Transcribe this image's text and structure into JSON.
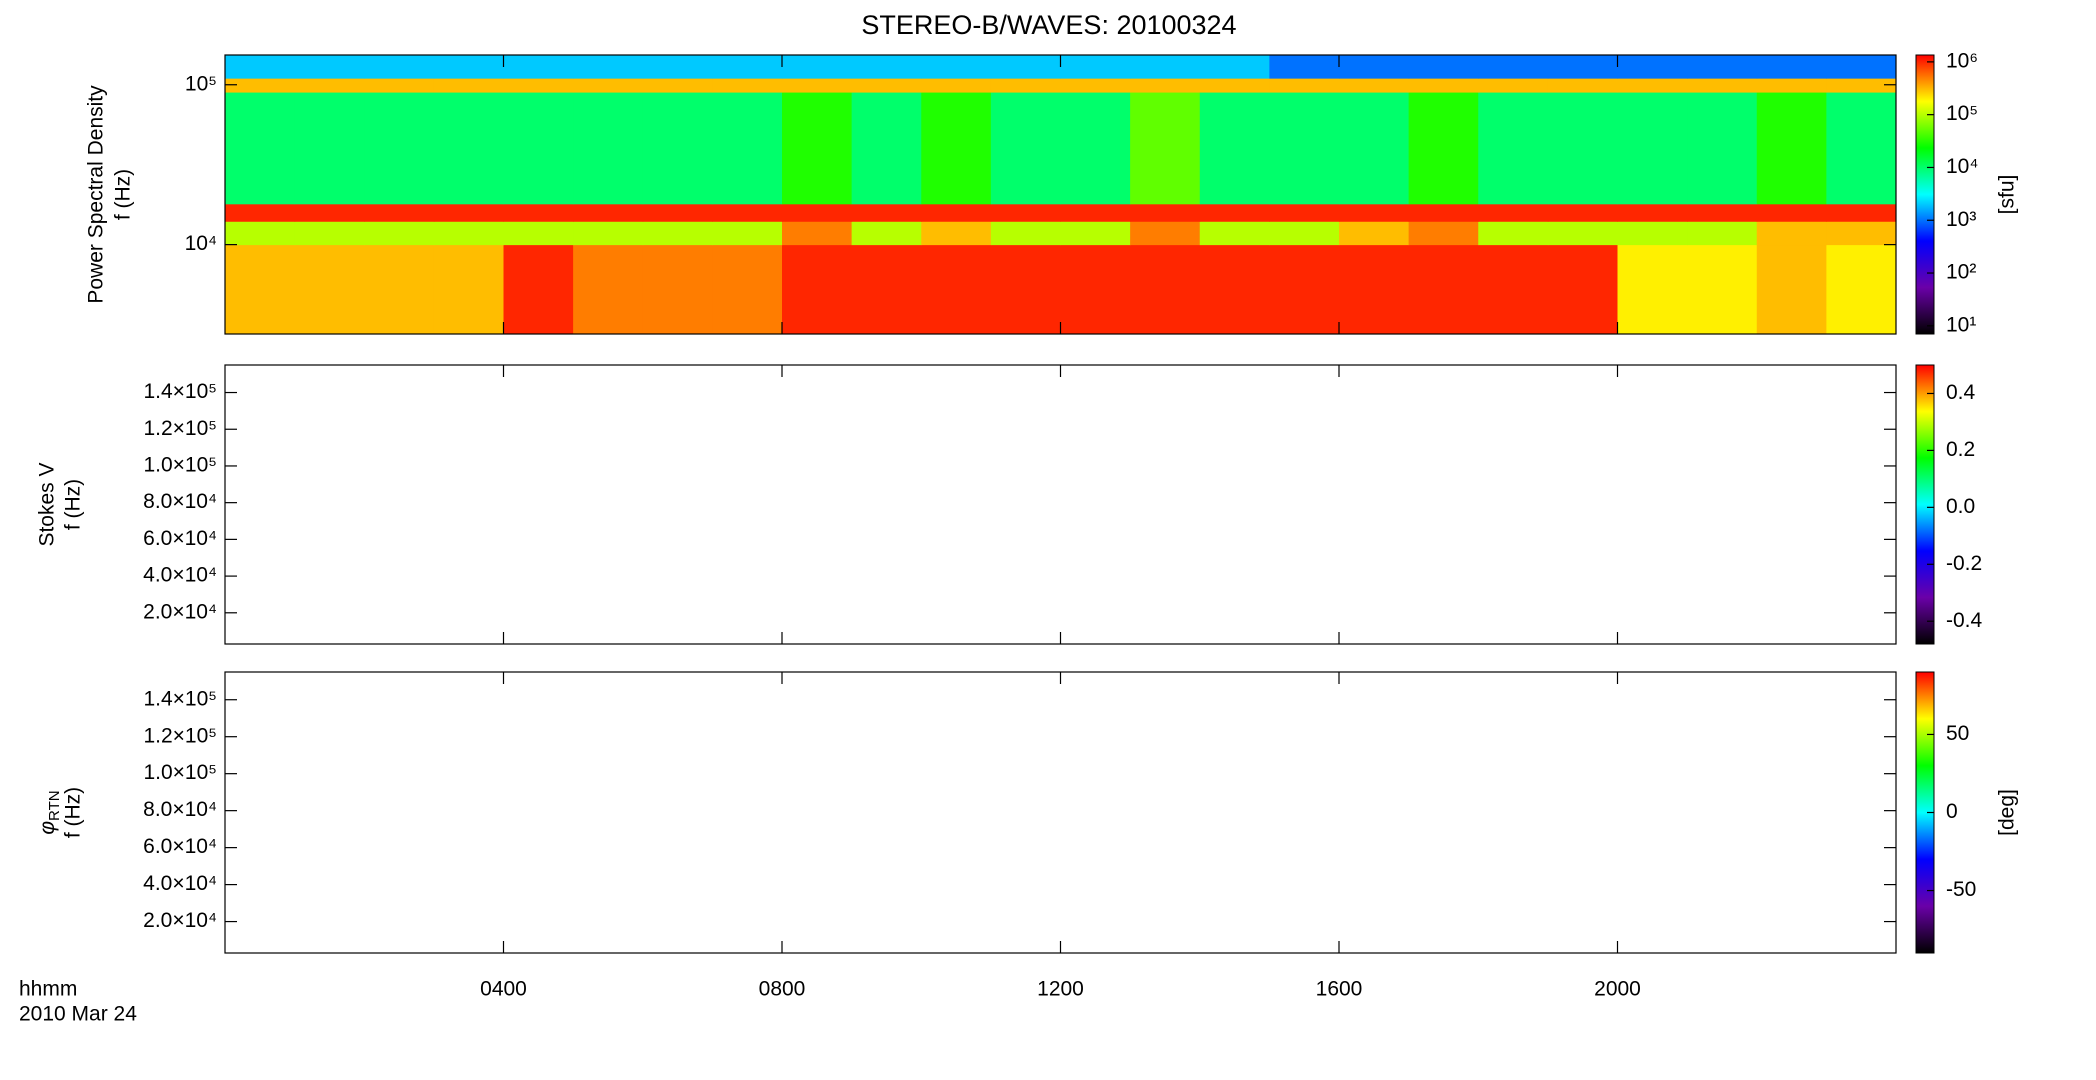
{
  "chart_data": [
    {
      "type": "heatmap",
      "title": "STEREO-B/WAVES: 20100324",
      "ylabel": "Power Spectral Density",
      "ylabel2": "f (Hz)",
      "log": true,
      "ylim": [
        2760,
        153500
      ],
      "yticks": [
        {
          "value": 10000,
          "label": "10⁴"
        },
        {
          "value": 100000,
          "label": "10⁵"
        }
      ],
      "x_edges": [
        0,
        1,
        2,
        3,
        4,
        5,
        6,
        7,
        8,
        9,
        10,
        11,
        12,
        13,
        14,
        15,
        16,
        17,
        18,
        19,
        20,
        21,
        22,
        23,
        24
      ],
      "y_edges": [
        2760,
        10000,
        14000,
        18000,
        90000,
        110000,
        153500
      ],
      "z": [
        [
          300000,
          300000,
          300000,
          300000,
          1000000,
          500000,
          500000,
          500000,
          1000000,
          1000000,
          1000000,
          1000000,
          1000000,
          1000000,
          1000000,
          1000000,
          1000000,
          1000000,
          1000000,
          1000000,
          200000,
          200000,
          300000,
          200000
        ],
        [
          100000,
          100000,
          100000,
          100000,
          100000,
          100000,
          100000,
          100000,
          500000,
          100000,
          300000,
          100000,
          100000,
          500000,
          100000,
          100000,
          300000,
          500000,
          100000,
          100000,
          100000,
          100000,
          300000,
          300000
        ],
        [
          1000000,
          1000000,
          1000000,
          1000000,
          1000000,
          1000000,
          1000000,
          1000000,
          1000000,
          1000000,
          1000000,
          1000000,
          1000000,
          1000000,
          1000000,
          1000000,
          1000000,
          1000000,
          1000000,
          1000000,
          1000000,
          1000000,
          1000000,
          1000000
        ],
        [
          10000,
          10000,
          10000,
          10000,
          10000,
          10000,
          10000,
          10000,
          30000,
          10000,
          30000,
          10000,
          10000,
          50000,
          10000,
          10000,
          10000,
          30000,
          10000,
          10000,
          10000,
          10000,
          30000,
          10000
        ],
        [
          300000,
          300000,
          300000,
          300000,
          300000,
          300000,
          300000,
          300000,
          300000,
          300000,
          300000,
          300000,
          300000,
          300000,
          300000,
          300000,
          300000,
          300000,
          300000,
          300000,
          300000,
          300000,
          300000,
          300000
        ],
        [
          2000,
          2000,
          2000,
          2000,
          2000,
          2000,
          2000,
          2000,
          2000,
          2000,
          2000,
          2000,
          2000,
          2000,
          2000,
          1000,
          1000,
          1000,
          1000,
          1000,
          1000,
          1000,
          1000,
          1000
        ]
      ],
      "colormap": [
        "#000000",
        "#6a00a8",
        "#0000ff",
        "#00ffff",
        "#00ff00",
        "#ffff00",
        "#ff0000"
      ],
      "zlog": true,
      "zlim": [
        7,
        1350000
      ],
      "zticks": [
        {
          "value": 10,
          "label": "10¹"
        },
        {
          "value": 100,
          "label": "10²"
        },
        {
          "value": 1000,
          "label": "10³"
        },
        {
          "value": 10000,
          "label": "10⁴"
        },
        {
          "value": 100000,
          "label": "10⁵"
        },
        {
          "value": 1000000,
          "label": "10⁶"
        }
      ],
      "zlabel": "[sfu]"
    },
    {
      "type": "heatmap",
      "ylabel": "Stokes V",
      "ylabel2": "f (Hz)",
      "ylim": [
        3000,
        155000
      ],
      "yticks": [
        {
          "value": 20000,
          "label": "2.0×10⁴"
        },
        {
          "value": 40000,
          "label": "4.0×10⁴"
        },
        {
          "value": 60000,
          "label": "6.0×10⁴"
        },
        {
          "value": 80000,
          "label": "8.0×10⁴"
        },
        {
          "value": 100000,
          "label": "1.0×10⁵"
        },
        {
          "value": 120000,
          "label": "1.2×10⁵"
        },
        {
          "value": 140000,
          "label": "1.4×10⁵"
        }
      ],
      "colormap": [
        "#000000",
        "#6a00a8",
        "#0000ff",
        "#00ffff",
        "#00ff00",
        "#ffff00",
        "#ff0000"
      ],
      "zlim": [
        -0.48,
        0.5
      ],
      "zticks": [
        -0.4,
        -0.2,
        {
          "value": 0,
          "label": "0.0"
        },
        0.2,
        0.4
      ]
    },
    {
      "type": "heatmap",
      "ylabel_symbol": "φ",
      "ylabel_subscript": "RTN",
      "ylabel2": "f (Hz)",
      "ylim": [
        3000,
        155000
      ],
      "yticks": [
        {
          "value": 20000,
          "label": "2.0×10⁴"
        },
        {
          "value": 40000,
          "label": "4.0×10⁴"
        },
        {
          "value": 60000,
          "label": "6.0×10⁴"
        },
        {
          "value": 80000,
          "label": "8.0×10⁴"
        },
        {
          "value": 100000,
          "label": "1.0×10⁵"
        },
        {
          "value": 120000,
          "label": "1.2×10⁵"
        },
        {
          "value": 140000,
          "label": "1.4×10⁵"
        }
      ],
      "colormap": [
        "#000000",
        "#6a00a8",
        "#0000ff",
        "#00ffff",
        "#00ff00",
        "#ffff00",
        "#ff0000"
      ],
      "zlim": [
        -90,
        90
      ],
      "zticks": [
        -50,
        0,
        50
      ],
      "zlabel": "[deg]",
      "xlabel": "hhmm",
      "xlabel2": "2010 Mar 24",
      "xlim": [
        0,
        24
      ],
      "xticks": [
        {
          "value": 4,
          "label": "0400"
        },
        {
          "value": 8,
          "label": "0800"
        },
        {
          "value": 12,
          "label": "1200"
        },
        {
          "value": 16,
          "label": "1600"
        },
        {
          "value": 20,
          "label": "2000"
        }
      ]
    }
  ]
}
